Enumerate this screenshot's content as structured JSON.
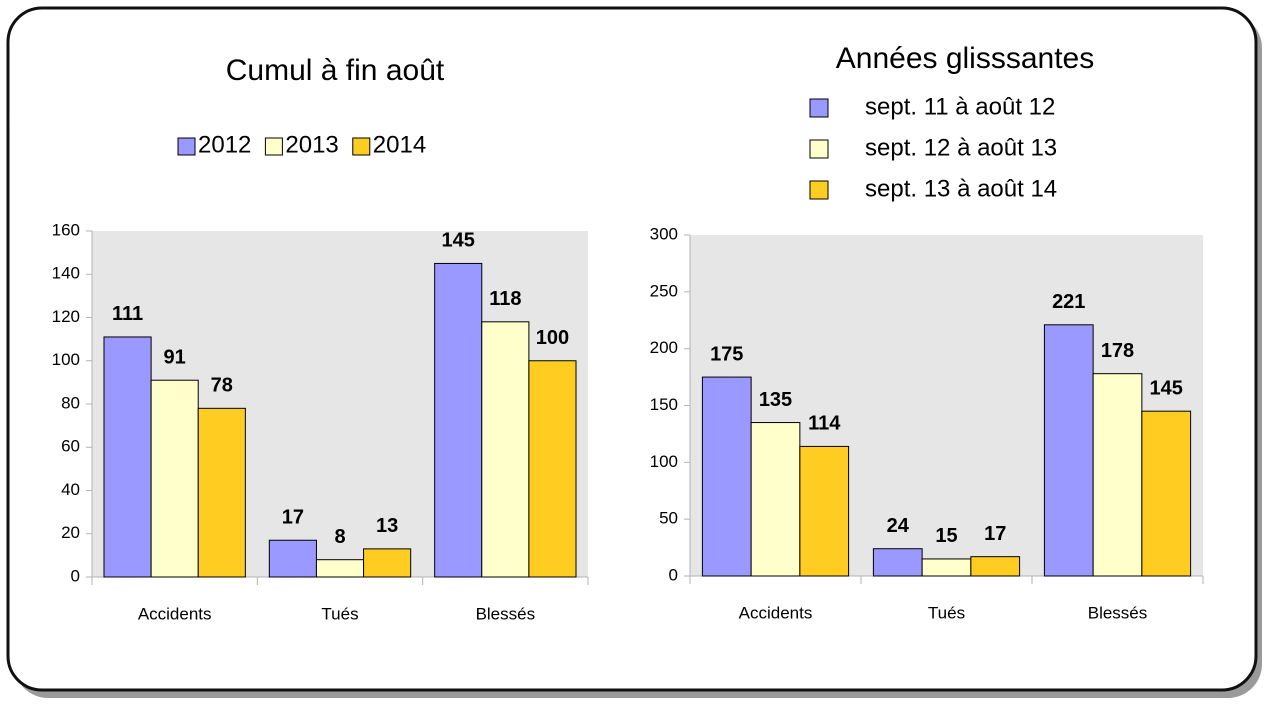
{
  "chart_data": [
    {
      "type": "bar",
      "title": "Cumul à fin août",
      "legend": "top",
      "categories": [
        "Accidents",
        "Tués",
        "Blessés"
      ],
      "series": [
        {
          "name": "2012",
          "color": "#9999ff",
          "values": [
            111,
            17,
            145
          ]
        },
        {
          "name": "2013",
          "color": "#ffffcc",
          "values": [
            91,
            8,
            118
          ]
        },
        {
          "name": "2014",
          "color": "#ffcc22",
          "values": [
            78,
            13,
            100
          ]
        }
      ],
      "ylim": [
        0,
        160
      ],
      "yticks": [
        0,
        20,
        40,
        60,
        80,
        100,
        120,
        140,
        160
      ]
    },
    {
      "type": "bar",
      "title": "Années glisssantes",
      "legend": "top",
      "categories": [
        "Accidents",
        "Tués",
        "Blessés"
      ],
      "series": [
        {
          "name": "sept. 11 à août 12",
          "color": "#9999ff",
          "values": [
            175,
            24,
            221
          ]
        },
        {
          "name": "sept. 12 à août 13",
          "color": "#ffffcc",
          "values": [
            135,
            15,
            178
          ]
        },
        {
          "name": "sept. 13 à août 14",
          "color": "#ffcc22",
          "values": [
            114,
            17,
            145
          ]
        }
      ],
      "ylim": [
        0,
        300
      ],
      "yticks": [
        0,
        50,
        100,
        150,
        200,
        250,
        300
      ]
    }
  ]
}
